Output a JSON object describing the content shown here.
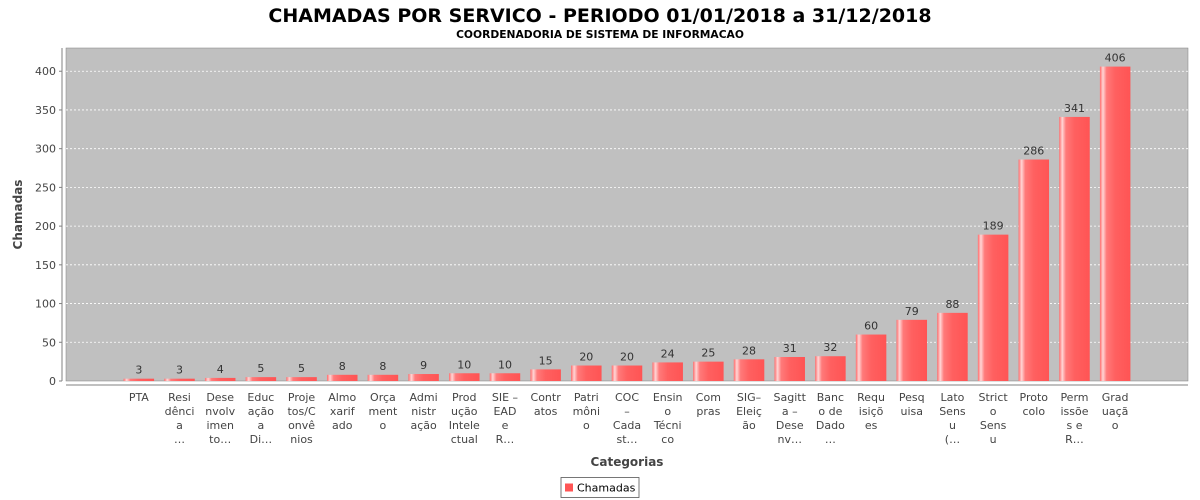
{
  "chart_data": {
    "type": "bar",
    "title": "CHAMADAS POR SERVICO - PERIODO 01/01/2018 a 31/12/2018",
    "subtitle": "COORDENADORIA DE SISTEMA DE INFORMACAO",
    "xlabel": "Categorias",
    "ylabel": "Chamadas",
    "ylim": [
      0,
      430
    ],
    "yticks": [
      0,
      50,
      100,
      150,
      200,
      250,
      300,
      350,
      400
    ],
    "grid": true,
    "legend_position": "bottom",
    "plot_background": "#c0c0c0",
    "categories": [
      [
        "PTA"
      ],
      [
        "Resi",
        "dênci",
        "a",
        "…"
      ],
      [
        "Dese",
        "nvolv",
        "imen",
        "to…"
      ],
      [
        "Educ",
        "ação",
        "a",
        "Di…"
      ],
      [
        "Proje",
        "tos/C",
        "onvê",
        "nios"
      ],
      [
        "Almo",
        "xarif",
        "ado"
      ],
      [
        "Orça",
        "ment",
        "o"
      ],
      [
        "Admi",
        "nistr",
        "ação"
      ],
      [
        "Prod",
        "ução",
        "Intele",
        "ctual"
      ],
      [
        "SIE –",
        "EAD",
        "e",
        "R…"
      ],
      [
        "Contr",
        "atos"
      ],
      [
        "Patri",
        "môni",
        "o"
      ],
      [
        "COC",
        "–",
        "Cada",
        "st…"
      ],
      [
        "Ensin",
        "o",
        "Técni",
        "co"
      ],
      [
        "Com",
        "pras"
      ],
      [
        "SIG–",
        "Eleiç",
        "ão"
      ],
      [
        "Sagitt",
        "a –",
        "Dese",
        "nv…"
      ],
      [
        "Banc",
        "o de",
        "Dado",
        "…"
      ],
      [
        "Requ",
        "isiçõ",
        "es"
      ],
      [
        "Pesq",
        "uisa"
      ],
      [
        "Lato",
        "Sens",
        "u",
        "(…"
      ],
      [
        "Strict",
        "o",
        "Sens",
        "u"
      ],
      [
        "Proto",
        "colo"
      ],
      [
        "Perm",
        "issõe",
        "s e",
        "R…"
      ],
      [
        "Grad",
        "uaçã",
        "o"
      ]
    ],
    "series": [
      {
        "name": "Chamadas",
        "color": "#ff5555",
        "values": [
          3,
          3,
          4,
          5,
          5,
          8,
          8,
          9,
          10,
          10,
          15,
          20,
          20,
          24,
          25,
          28,
          31,
          32,
          60,
          79,
          88,
          189,
          286,
          341,
          406
        ]
      }
    ]
  }
}
